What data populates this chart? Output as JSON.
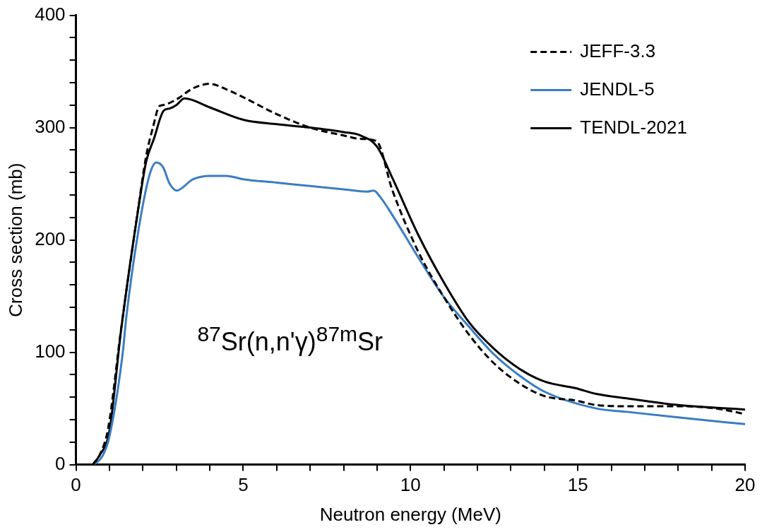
{
  "chart_data": {
    "type": "line",
    "xlabel": "Neutron energy (MeV)",
    "ylabel": "Cross section (mb)",
    "xlim": [
      0,
      20
    ],
    "ylim": [
      0,
      400
    ],
    "xticks": [
      0,
      {
        "value": 1,
        "label": null
      },
      {
        "value": 2,
        "label": null
      },
      {
        "value": 3,
        "label": null
      },
      {
        "value": 4,
        "label": null
      },
      5,
      {
        "value": 6,
        "label": null
      },
      {
        "value": 7,
        "label": null
      },
      {
        "value": 8,
        "label": null
      },
      {
        "value": 9,
        "label": null
      },
      10,
      {
        "value": 11,
        "label": null
      },
      {
        "value": 12,
        "label": null
      },
      {
        "value": 13,
        "label": null
      },
      {
        "value": 14,
        "label": null
      },
      15,
      {
        "value": 16,
        "label": null
      },
      {
        "value": 17,
        "label": null
      },
      {
        "value": 18,
        "label": null
      },
      {
        "value": 19,
        "label": null
      },
      20
    ],
    "yticks": [
      0,
      {
        "value": 20,
        "label": null
      },
      {
        "value": 40,
        "label": null
      },
      {
        "value": 60,
        "label": null
      },
      {
        "value": 80,
        "label": null
      },
      100,
      {
        "value": 120,
        "label": null
      },
      {
        "value": 140,
        "label": null
      },
      {
        "value": 160,
        "label": null
      },
      {
        "value": 180,
        "label": null
      },
      200,
      {
        "value": 220,
        "label": null
      },
      {
        "value": 240,
        "label": null
      },
      {
        "value": 260,
        "label": null
      },
      {
        "value": 280,
        "label": null
      },
      300,
      {
        "value": 320,
        "label": null
      },
      {
        "value": 340,
        "label": null
      },
      {
        "value": 360,
        "label": null
      },
      {
        "value": 380,
        "label": null
      },
      400
    ],
    "grid": false,
    "legend": "top right",
    "marker": "none",
    "annotations": [
      "$^{87}$Sr(n,n'γ)$^{87m}$Sr"
    ],
    "series": [
      {
        "name": "JEFF-3.3",
        "color": "#000000",
        "line_style": "dashed",
        "x": [
          0.5,
          0.7,
          0.96,
          1.35,
          1.87,
          2.1,
          2.3,
          2.49,
          2.6,
          3.0,
          3.5,
          4.0,
          4.5,
          5.0,
          6.0,
          7.0,
          8.0,
          8.5,
          8.98,
          9.46,
          10.24,
          11.0,
          11.74,
          12.5,
          13.27,
          14.0,
          14.94,
          15.55,
          16.46,
          18.0,
          19.13,
          20.0
        ],
        "values": [
          0,
          8,
          32,
          121,
          230,
          275,
          300,
          319,
          320,
          325,
          335,
          339,
          334,
          327,
          312,
          300,
          293,
          290,
          288,
          244,
          189,
          149,
          116,
          90,
          72,
          61,
          57,
          53,
          52,
          52,
          50,
          45
        ]
      },
      {
        "name": "JENDL-5",
        "color": "#3a7dc2",
        "line_style": "solid",
        "x": [
          0.55,
          0.8,
          1.0,
          1.4,
          1.5,
          1.87,
          2.2,
          2.4,
          2.6,
          2.8,
          3.01,
          3.5,
          4.0,
          4.5,
          5.0,
          6.0,
          7.0,
          8.0,
          8.7,
          8.9,
          9.1,
          9.46,
          10.24,
          11.0,
          11.74,
          12.5,
          13.27,
          14.0,
          15.55,
          16.46,
          18.0,
          20.0
        ],
        "values": [
          0,
          8,
          25,
          100,
          130,
          209,
          258,
          269,
          265,
          250,
          244,
          254,
          257,
          257,
          254,
          251,
          248,
          245,
          243,
          244,
          238,
          222,
          184,
          149,
          123,
          98,
          79,
          65,
          50,
          47,
          42,
          36
        ]
      },
      {
        "name": "TENDL-2021",
        "color": "#000000",
        "line_style": "solid",
        "x": [
          0.5,
          0.7,
          1.0,
          1.35,
          1.9,
          2.1,
          2.33,
          2.62,
          2.8,
          3.0,
          3.24,
          4.0,
          5.0,
          6.0,
          7.0,
          8.0,
          8.5,
          9.0,
          9.46,
          10.24,
          11.0,
          11.74,
          12.5,
          13.27,
          14.0,
          14.94,
          15.55,
          16.46,
          18.0,
          20.0
        ],
        "values": [
          0,
          8,
          30,
          120,
          235,
          270,
          290,
          315,
          317,
          320,
          326,
          318,
          307,
          303,
          300,
          296,
          293,
          283,
          255,
          204,
          162,
          127,
          103,
          85,
          74,
          68,
          63,
          59,
          53,
          49
        ]
      }
    ]
  }
}
